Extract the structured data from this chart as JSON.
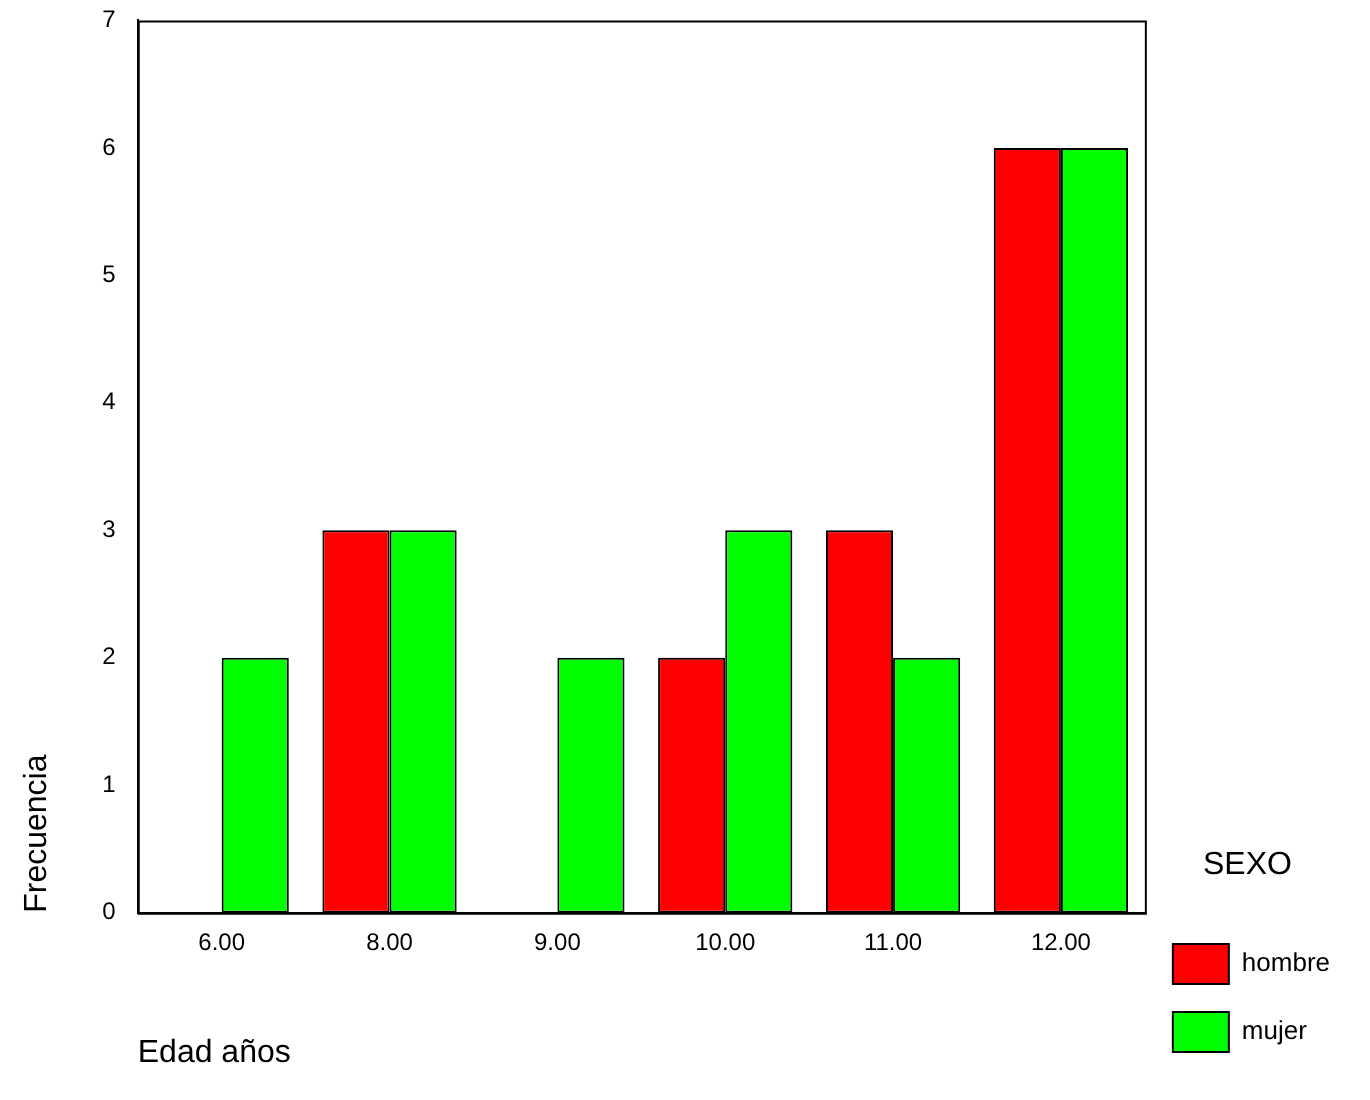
{
  "chart_data": {
    "type": "bar",
    "xlabel": "Edad años",
    "ylabel": "Frecuencia",
    "legend_title": "SEXO",
    "categories": [
      "6.00",
      "8.00",
      "9.00",
      "10.00",
      "11.00",
      "12.00"
    ],
    "series": [
      {
        "name": "hombre",
        "color": "#ff0000",
        "values": [
          0,
          3,
          0,
          2,
          3,
          6
        ]
      },
      {
        "name": "mujer",
        "color": "#00ff00",
        "values": [
          2,
          3,
          2,
          3,
          2,
          6
        ]
      }
    ],
    "ylim": [
      0,
      7
    ],
    "yticks": [
      0,
      1,
      2,
      3,
      4,
      5,
      6,
      7
    ],
    "grid": false,
    "legend": "right"
  }
}
